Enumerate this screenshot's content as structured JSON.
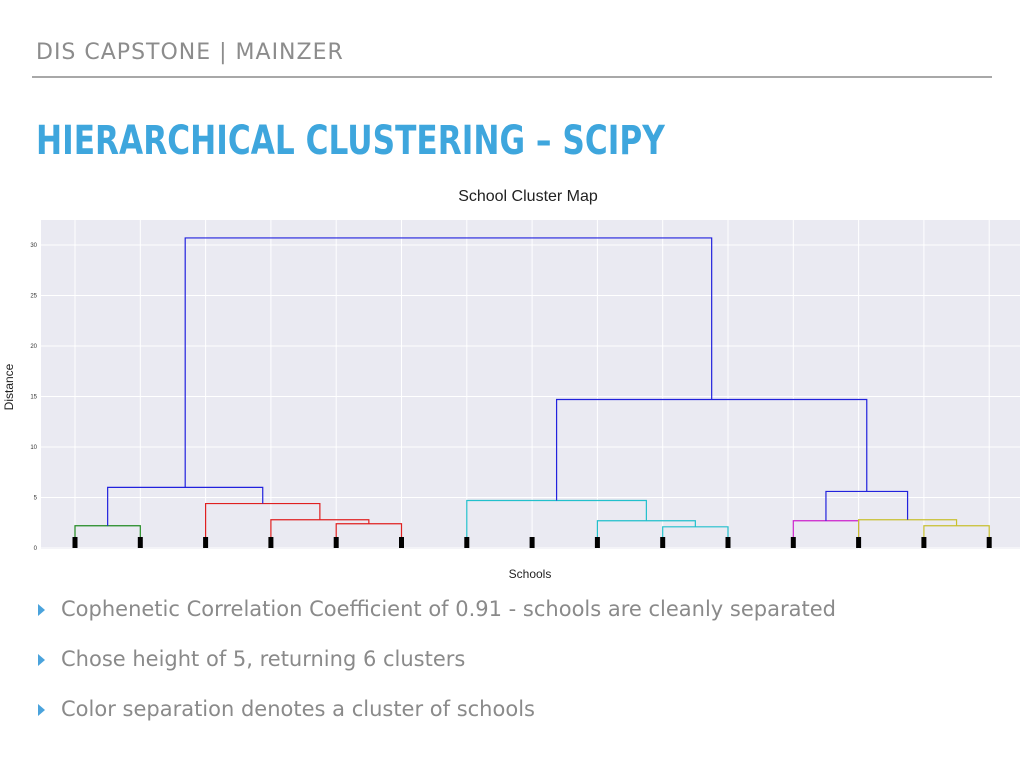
{
  "slide": {
    "header": "DIS CAPSTONE | MAINZER",
    "title": "HIERARCHICAL CLUSTERING – SCIPY",
    "bullets": [
      "Cophenetic Correlation Coefficient of 0.91 - schools are cleanly separated",
      "Chose height of 5, returning 6 clusters",
      "Color separation denotes a cluster of schools"
    ]
  },
  "chart_data": {
    "type": "dendrogram",
    "title": "School Cluster Map",
    "xlabel": "Schools",
    "ylabel": "Distance",
    "ylim": [
      0,
      31
    ],
    "yticks": [
      0,
      5,
      10,
      15,
      20,
      25,
      30
    ],
    "grid": true,
    "leaf_count": 15,
    "leaf_color": "#000000",
    "colors": {
      "green": "#228b22",
      "red": "#e02020",
      "cyan": "#22c0cc",
      "magenta": "#cc22cc",
      "yellow": "#c8c030",
      "blue": "#2222dd"
    },
    "links": [
      {
        "left": 1,
        "right": 2,
        "height": 2.2,
        "color": "green"
      },
      {
        "left": 5,
        "right": 6,
        "height": 2.4,
        "color": "red"
      },
      {
        "left": 4,
        "right": 5.5,
        "height": 2.8,
        "color": "red"
      },
      {
        "left": 3,
        "right": 4.75,
        "height": 4.4,
        "color": "red"
      },
      {
        "left": 1.5,
        "right": 3.875,
        "height": 6.0,
        "color": "blue"
      },
      {
        "left": 10,
        "right": 11,
        "height": 2.1,
        "color": "cyan"
      },
      {
        "left": 9,
        "right": 10.5,
        "height": 2.7,
        "color": "cyan"
      },
      {
        "left": 7,
        "right": 9.75,
        "height": 4.7,
        "color": "cyan"
      },
      {
        "left": 12,
        "right": 13,
        "height": 2.7,
        "color": "magenta"
      },
      {
        "left": 14,
        "right": 15,
        "height": 2.2,
        "color": "yellow"
      },
      {
        "left": 13,
        "right": 14.5,
        "height": 2.8,
        "color": "yellow"
      },
      {
        "left": 12.5,
        "right": 13.75,
        "height": 5.6,
        "color": "blue"
      },
      {
        "left": 8.375,
        "right": 13.125,
        "height": 14.7,
        "color": "blue"
      },
      {
        "left": 2.6875,
        "right": 10.75,
        "height": 30.7,
        "color": "blue"
      }
    ]
  }
}
